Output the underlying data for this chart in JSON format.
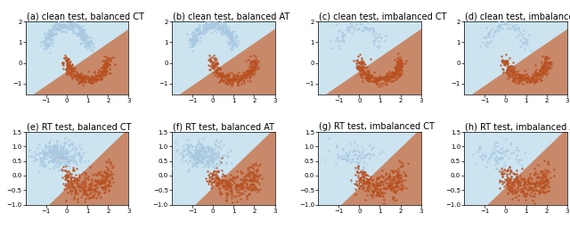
{
  "titles": [
    "(a) clean test, balanced CT",
    "(b) clean test, balanced AT",
    "(c) clean test, imbalanced CT",
    "(d) clean test, imbalanced AT",
    "(e) RT test, balanced CT",
    "(f) RT test, balanced AT",
    "(g) RT test, imbalanced CT",
    "(h) RT test, imbalanced AT"
  ],
  "color_blue_bg": "#cce4f0",
  "color_brown_bg": "#c8896a",
  "color_blue_pts": "#a8c8e0",
  "color_orange_pts": "#b85020",
  "xlim": [
    -2,
    3
  ],
  "ylim_rows": [
    [
      -1.5,
      2.0
    ],
    [
      -1.0,
      1.5
    ]
  ],
  "title_fontsize": 7.0,
  "slopes": [
    0.68,
    0.68,
    0.68,
    0.68,
    0.68,
    0.68,
    0.68,
    0.68
  ],
  "intercepts": [
    -0.45,
    -0.45,
    -0.45,
    -0.45,
    -0.45,
    -0.45,
    -0.45,
    -0.45
  ]
}
